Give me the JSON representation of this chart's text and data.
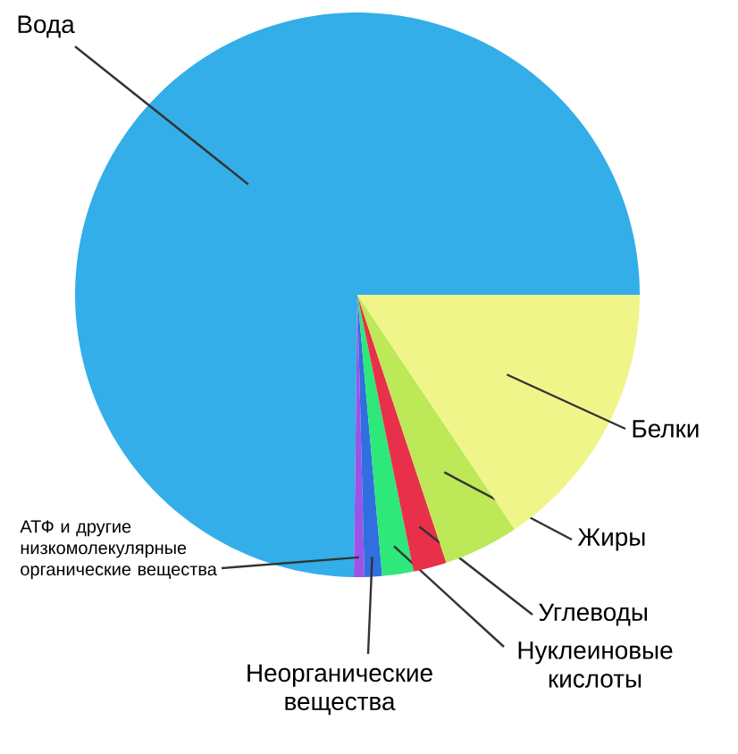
{
  "chart_data": {
    "type": "pie",
    "categories": [
      "Вода",
      "АТФ и другие низкомолекулярные органические вещества",
      "Неорганические вещества",
      "Нуклеиновые кислоты",
      "Углеводы",
      "Жиры",
      "Белки"
    ],
    "values": [
      74.8,
      0.6,
      1.0,
      1.8,
      1.9,
      4.3,
      15.6
    ],
    "colors": [
      "#33aee8",
      "#9a55e8",
      "#2f6fe0",
      "#2ee87a",
      "#e8304a",
      "#bde858",
      "#f0f58a"
    ]
  }
}
